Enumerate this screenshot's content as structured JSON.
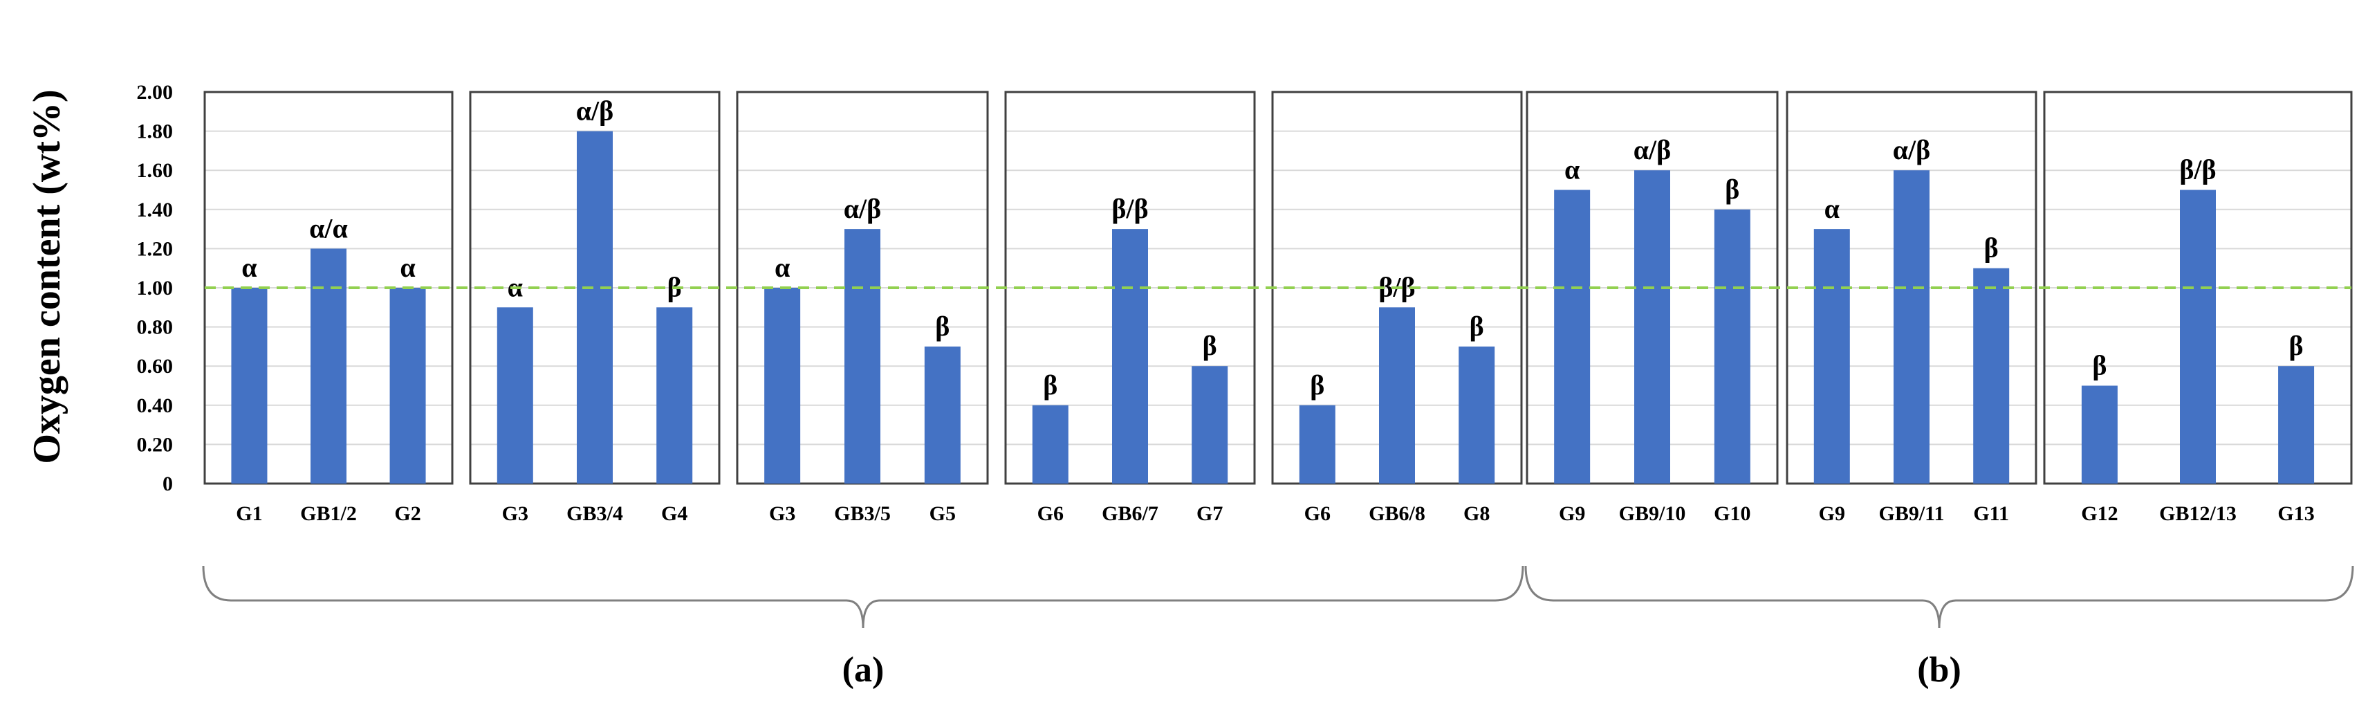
{
  "chart_data": {
    "type": "bar",
    "ylabel": "Oxygen content  (wt%)",
    "ylim": [
      0,
      2.0
    ],
    "yticks": [
      "0",
      "0.20",
      "0.40",
      "0.60",
      "0.80",
      "1.00",
      "1.20",
      "1.40",
      "1.60",
      "1.80",
      "2.00"
    ],
    "reference_line": {
      "y": 1.0,
      "style": "dashed",
      "color": "#92d050"
    },
    "bar_color": "#4472c4",
    "grid": true,
    "panels": [
      {
        "categories": [
          "G1",
          "GB1/2",
          "G2"
        ],
        "values": [
          1.0,
          1.2,
          1.0
        ],
        "labels": [
          "α",
          "α/α",
          "α"
        ]
      },
      {
        "categories": [
          "G3",
          "GB3/4",
          "G4"
        ],
        "values": [
          0.9,
          1.8,
          0.9
        ],
        "labels": [
          "α",
          "α/β",
          "β"
        ]
      },
      {
        "categories": [
          "G3",
          "GB3/5",
          "G5"
        ],
        "values": [
          1.0,
          1.3,
          0.7
        ],
        "labels": [
          "α",
          "α/β",
          "β"
        ]
      },
      {
        "categories": [
          "G6",
          "GB6/7",
          "G7"
        ],
        "values": [
          0.4,
          1.3,
          0.6
        ],
        "labels": [
          "β",
          "β/β",
          "β"
        ]
      },
      {
        "categories": [
          "G6",
          "GB6/8",
          "G8"
        ],
        "values": [
          0.4,
          0.9,
          0.7
        ],
        "labels": [
          "β",
          "β/β",
          "β"
        ]
      },
      {
        "categories": [
          "G9",
          "GB9/10",
          "G10"
        ],
        "values": [
          1.5,
          1.6,
          1.4
        ],
        "labels": [
          "α",
          "α/β",
          "β"
        ]
      },
      {
        "categories": [
          "G9",
          "GB9/11",
          "G11"
        ],
        "values": [
          1.3,
          1.6,
          1.1
        ],
        "labels": [
          "α",
          "α/β",
          "β"
        ]
      },
      {
        "categories": [
          "G12",
          "GB12/13",
          "G13"
        ],
        "values": [
          0.5,
          1.5,
          0.6
        ],
        "labels": [
          "β",
          "β/β",
          "β"
        ]
      }
    ],
    "groups": [
      {
        "label": "(a)",
        "panels": [
          0,
          1,
          2,
          3,
          4
        ]
      },
      {
        "label": "(b)",
        "panels": [
          5,
          6,
          7
        ]
      }
    ]
  }
}
